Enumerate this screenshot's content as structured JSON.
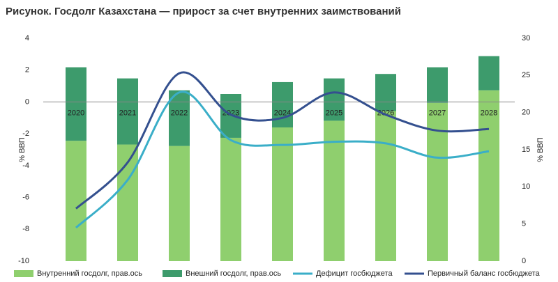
{
  "chart_data": {
    "type": "combo",
    "title": "Рисунок. Госдолг Казахстана — прирост за счет внутренних заимствований",
    "y_label": "% ВВП",
    "y2_label": "% ВВП",
    "categories": [
      "2020",
      "2021",
      "2022",
      "2023",
      "2024",
      "2025",
      "2026",
      "2027",
      "2028"
    ],
    "ylim": [
      -10,
      4
    ],
    "yticks": [
      -10,
      -8,
      -6,
      -4,
      -2,
      0,
      2,
      4
    ],
    "y2lim": [
      0,
      30
    ],
    "y2ticks": [
      0,
      5,
      10,
      15,
      20,
      25,
      30
    ],
    "zero_line": true,
    "series": [
      {
        "name": "Внутренний госдолг, прав.ось",
        "type": "bar",
        "axis": "y2",
        "color": "#8fcf6e",
        "values": [
          16.2,
          15.7,
          15.5,
          16.6,
          18.0,
          18.9,
          20.2,
          21.3,
          23.0
        ]
      },
      {
        "name": "Внешний госдолг, прав.ось",
        "type": "bar",
        "axis": "y2",
        "color": "#3d9b6c",
        "values": [
          9.9,
          8.9,
          7.5,
          5.9,
          6.1,
          5.7,
          5.0,
          4.8,
          4.6
        ]
      },
      {
        "name": "Дефицит госбюджета",
        "type": "line",
        "color": "#3aaec8",
        "values": [
          -7.9,
          -4.9,
          0.6,
          -2.4,
          -2.7,
          -2.5,
          -2.6,
          -3.5,
          -3.1
        ]
      },
      {
        "name": "Первичный баланс госбюджета",
        "type": "line",
        "color": "#34508f",
        "values": [
          -6.7,
          -3.8,
          1.8,
          -0.8,
          -1.0,
          0.6,
          -0.8,
          -1.8,
          -1.7
        ]
      }
    ]
  }
}
